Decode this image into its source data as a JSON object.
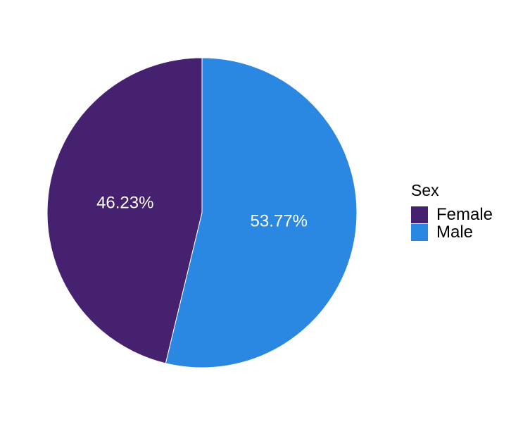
{
  "chart_data": {
    "type": "pie",
    "title": "",
    "legend_title": "Sex",
    "legend_position": "right",
    "categories": [
      "Female",
      "Male"
    ],
    "values": [
      46.23,
      53.77
    ],
    "labels": [
      "46.23%",
      "53.77%"
    ],
    "colors": [
      "#46216f",
      "#2b88e2"
    ]
  }
}
